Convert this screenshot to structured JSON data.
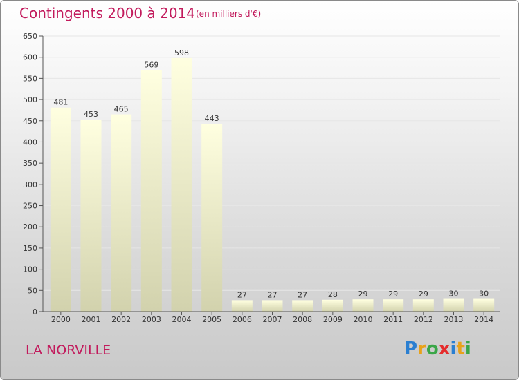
{
  "header": {
    "title": "Contingents 2000 à 2014",
    "subtitle": "(en milliers d'€)"
  },
  "footer": {
    "commune": "LA NORVILLE",
    "logo": [
      "P",
      "r",
      "o",
      "x",
      "i",
      "t",
      "i"
    ],
    "logo_colors": [
      "#2a7fd1",
      "#e8a21a",
      "#3aa648",
      "#e52c2c",
      "#2a7fd1",
      "#e8a21a",
      "#3aa648"
    ]
  },
  "colors": {
    "title": "#c21a5c",
    "bar_top": "#ffffe0",
    "bar_bottom": "#d2d2ad",
    "axis": "#555555",
    "grid": "#e6e6e6"
  },
  "chart_data": {
    "type": "bar",
    "title": "Contingents 2000 à 2014",
    "subtitle": "(en milliers d'€)",
    "categories": [
      "2000",
      "2001",
      "2002",
      "2003",
      "2004",
      "2005",
      "2006",
      "2007",
      "2008",
      "2009",
      "2010",
      "2011",
      "2012",
      "2013",
      "2014"
    ],
    "values": [
      481,
      453,
      465,
      569,
      598,
      443,
      27,
      27,
      27,
      28,
      29,
      29,
      29,
      30,
      30
    ],
    "ylim": [
      0,
      650
    ],
    "yticks": [
      0,
      50,
      100,
      150,
      200,
      250,
      300,
      350,
      400,
      450,
      500,
      550,
      600,
      650
    ],
    "grid": true,
    "data_labels": true
  }
}
